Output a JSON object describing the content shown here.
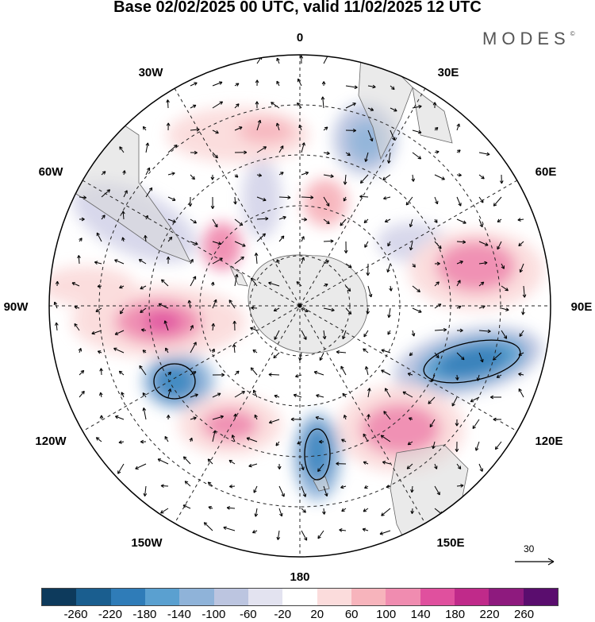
{
  "title": "Base 02/02/2025 00 UTC, valid 11/02/2025 12 UTC",
  "brand": "MODES",
  "brand_mark": "©",
  "lon_labels": {
    "top": "0",
    "top_right": "30E",
    "right_upper": "60E",
    "right": "90E",
    "right_lower": "120E",
    "bottom_right": "150E",
    "bottom": "180",
    "bottom_left": "150W",
    "left_lower": "120W",
    "left": "90W",
    "left_upper": "60W",
    "top_left": "30W"
  },
  "vector_scale": "30",
  "colorbar": {
    "colors": [
      "#0d3a5c",
      "#1a5e8f",
      "#2f7cb8",
      "#5aa0d0",
      "#8fb3d9",
      "#bcc5e0",
      "#e3e3f0",
      "#ffffff",
      "#fbdcdc",
      "#f7b4bc",
      "#f08cb0",
      "#e0509e",
      "#c02a8a",
      "#8e1a7e",
      "#5a0d6e"
    ],
    "ticks": [
      "-260",
      "-220",
      "-180",
      "-140",
      "-100",
      "-60",
      "-20",
      "20",
      "60",
      "100",
      "140",
      "180",
      "220",
      "260"
    ]
  }
}
